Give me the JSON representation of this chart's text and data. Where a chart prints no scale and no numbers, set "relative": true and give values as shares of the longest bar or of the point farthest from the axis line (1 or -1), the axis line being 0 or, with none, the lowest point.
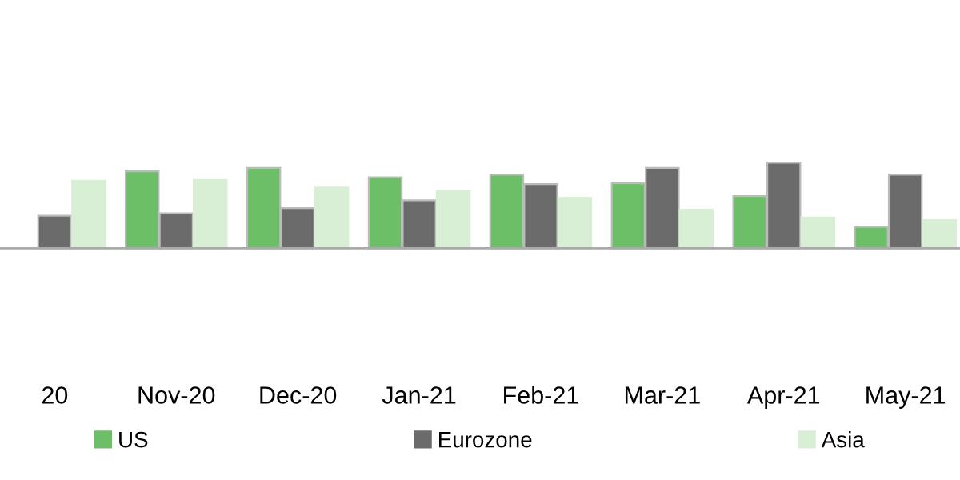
{
  "chart_data": {
    "type": "bar",
    "relative": true,
    "categories": [
      "20",
      "Nov-20",
      "Dec-20",
      "Jan-21",
      "Feb-21",
      "Mar-21",
      "Apr-21",
      "May-21"
    ],
    "series": [
      {
        "name": "US",
        "color": "#6dbf67",
        "values": [
          null,
          0.9,
          0.94,
          0.83,
          0.86,
          0.76,
          0.61,
          0.25
        ]
      },
      {
        "name": "Eurozone",
        "color": "#6b6b6b",
        "values": [
          0.38,
          0.41,
          0.47,
          0.56,
          0.75,
          0.94,
          1,
          0.86
        ]
      },
      {
        "name": "Asia",
        "color": "#d9efd5",
        "values": [
          0.79,
          0.8,
          0.71,
          0.67,
          0.59,
          0.45,
          0.36,
          0.33
        ]
      }
    ],
    "legend": "bottom"
  }
}
